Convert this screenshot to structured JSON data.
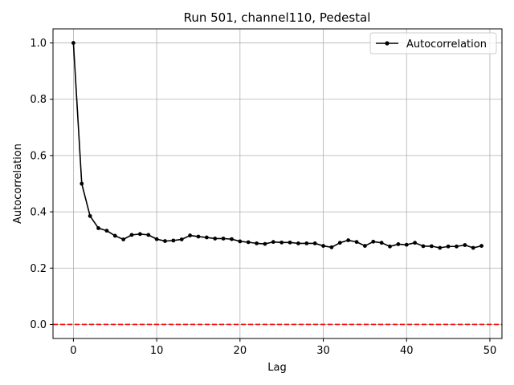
{
  "chart_data": {
    "type": "line",
    "title": "Run 501, channel110, Pedestal",
    "xlabel": "Lag",
    "ylabel": "Autocorrelation",
    "xlim": [
      -2.45,
      51.45
    ],
    "ylim": [
      -0.05,
      1.05
    ],
    "xticks": [
      0,
      10,
      20,
      30,
      40,
      50
    ],
    "xtick_labels": [
      "0",
      "10",
      "20",
      "30",
      "40",
      "50"
    ],
    "yticks": [
      0.0,
      0.2,
      0.4,
      0.6,
      0.8,
      1.0
    ],
    "ytick_labels": [
      "0.0",
      "0.2",
      "0.4",
      "0.6",
      "0.8",
      "1.0"
    ],
    "grid": true,
    "legend_position": "top-right",
    "series": [
      {
        "name": "Autocorrelation",
        "color": "#000000",
        "marker": "circle",
        "x": [
          0,
          1,
          2,
          3,
          4,
          5,
          6,
          7,
          8,
          9,
          10,
          11,
          12,
          13,
          14,
          15,
          16,
          17,
          18,
          19,
          20,
          21,
          22,
          23,
          24,
          25,
          26,
          27,
          28,
          29,
          30,
          31,
          32,
          33,
          34,
          35,
          36,
          37,
          38,
          39,
          40,
          41,
          42,
          43,
          44,
          45,
          46,
          47,
          48,
          49
        ],
        "y": [
          1.0,
          0.5,
          0.385,
          0.342,
          0.333,
          0.315,
          0.302,
          0.318,
          0.321,
          0.318,
          0.303,
          0.296,
          0.298,
          0.302,
          0.316,
          0.312,
          0.309,
          0.305,
          0.305,
          0.303,
          0.295,
          0.292,
          0.288,
          0.286,
          0.293,
          0.291,
          0.291,
          0.288,
          0.288,
          0.288,
          0.279,
          0.274,
          0.29,
          0.299,
          0.293,
          0.279,
          0.294,
          0.29,
          0.277,
          0.285,
          0.283,
          0.29,
          0.278,
          0.278,
          0.272,
          0.277,
          0.277,
          0.282,
          0.272,
          0.279
        ]
      }
    ],
    "reference_line": {
      "y": 0.0,
      "color": "#ff0000",
      "style": "dashed"
    }
  }
}
